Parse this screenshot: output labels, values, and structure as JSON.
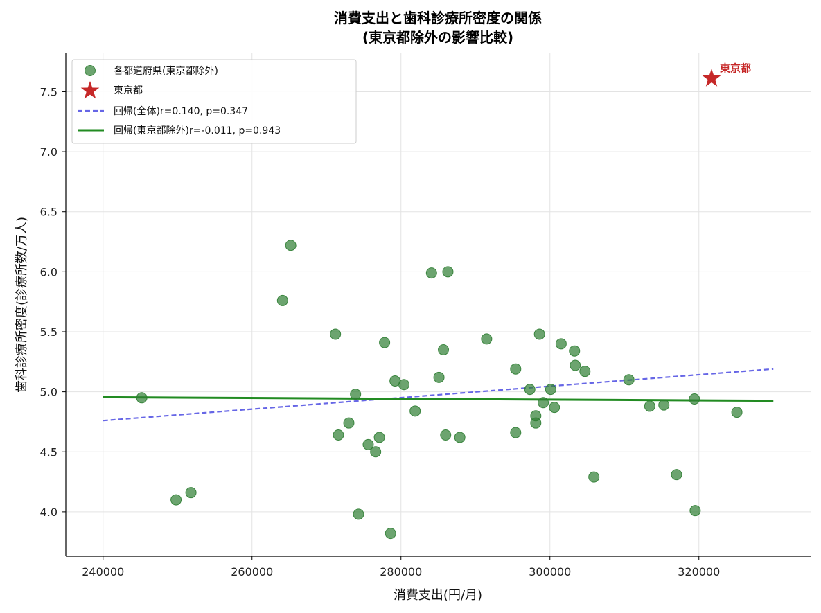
{
  "chart_data": {
    "type": "scatter",
    "title_line1": "消費支出と歯科診療所密度の関係",
    "title_line2": "(東京都除外の影響比較)",
    "xlabel": "消費支出(円/月)",
    "ylabel": "歯科診療所密度(診療所数/万人)",
    "xlim": [
      235000,
      335000
    ],
    "ylim": [
      3.63,
      7.82
    ],
    "x_ticks": [
      240000,
      260000,
      280000,
      300000,
      320000
    ],
    "y_ticks": [
      4.0,
      4.5,
      5.0,
      5.5,
      6.0,
      6.5,
      7.0,
      7.5
    ],
    "grid": true,
    "legend_position": "top-left",
    "colors": {
      "points": "#2e7d32",
      "tokyo": "#c62828",
      "reg_all": "#6666e6",
      "reg_excl": "#228b22"
    },
    "series": [
      {
        "name": "各都道府県(東京都除外)",
        "marker": "circle",
        "points": [
          [
            245200,
            4.95
          ],
          [
            249800,
            4.1
          ],
          [
            251800,
            4.16
          ],
          [
            264100,
            5.76
          ],
          [
            265200,
            6.22
          ],
          [
            271200,
            5.48
          ],
          [
            271600,
            4.64
          ],
          [
            273000,
            4.74
          ],
          [
            273900,
            4.98
          ],
          [
            274300,
            3.98
          ],
          [
            275600,
            4.56
          ],
          [
            276600,
            4.5
          ],
          [
            277100,
            4.62
          ],
          [
            277800,
            5.41
          ],
          [
            278600,
            3.82
          ],
          [
            279200,
            5.09
          ],
          [
            280400,
            5.06
          ],
          [
            281900,
            4.84
          ],
          [
            284100,
            5.99
          ],
          [
            285100,
            5.12
          ],
          [
            285700,
            5.35
          ],
          [
            286000,
            4.64
          ],
          [
            286300,
            6.0
          ],
          [
            287900,
            4.62
          ],
          [
            291500,
            5.44
          ],
          [
            295400,
            5.19
          ],
          [
            295400,
            4.66
          ],
          [
            297300,
            5.02
          ],
          [
            298100,
            4.8
          ],
          [
            298100,
            4.74
          ],
          [
            298600,
            5.48
          ],
          [
            299100,
            4.91
          ],
          [
            300100,
            5.02
          ],
          [
            300600,
            4.87
          ],
          [
            301500,
            5.4
          ],
          [
            303300,
            5.34
          ],
          [
            303400,
            5.22
          ],
          [
            304700,
            5.17
          ],
          [
            305900,
            4.29
          ],
          [
            310600,
            5.1
          ],
          [
            313400,
            4.88
          ],
          [
            315300,
            4.89
          ],
          [
            317000,
            4.31
          ],
          [
            319400,
            4.94
          ],
          [
            319500,
            4.01
          ],
          [
            325100,
            4.83
          ]
        ]
      },
      {
        "name": "東京都",
        "marker": "star",
        "points": [
          [
            321700,
            7.61
          ]
        ]
      },
      {
        "name": "回帰(全体)r=0.140, p=0.347",
        "type": "line",
        "style": "dashed",
        "points": [
          [
            240000,
            4.76
          ],
          [
            330000,
            5.19
          ]
        ]
      },
      {
        "name": "回帰(東京都除外)r=-0.011, p=0.943",
        "type": "line",
        "style": "solid",
        "points": [
          [
            240000,
            4.955
          ],
          [
            330000,
            4.925
          ]
        ]
      }
    ],
    "annotations": [
      {
        "text": "東京都",
        "x": 321700,
        "y": 7.61
      }
    ]
  }
}
